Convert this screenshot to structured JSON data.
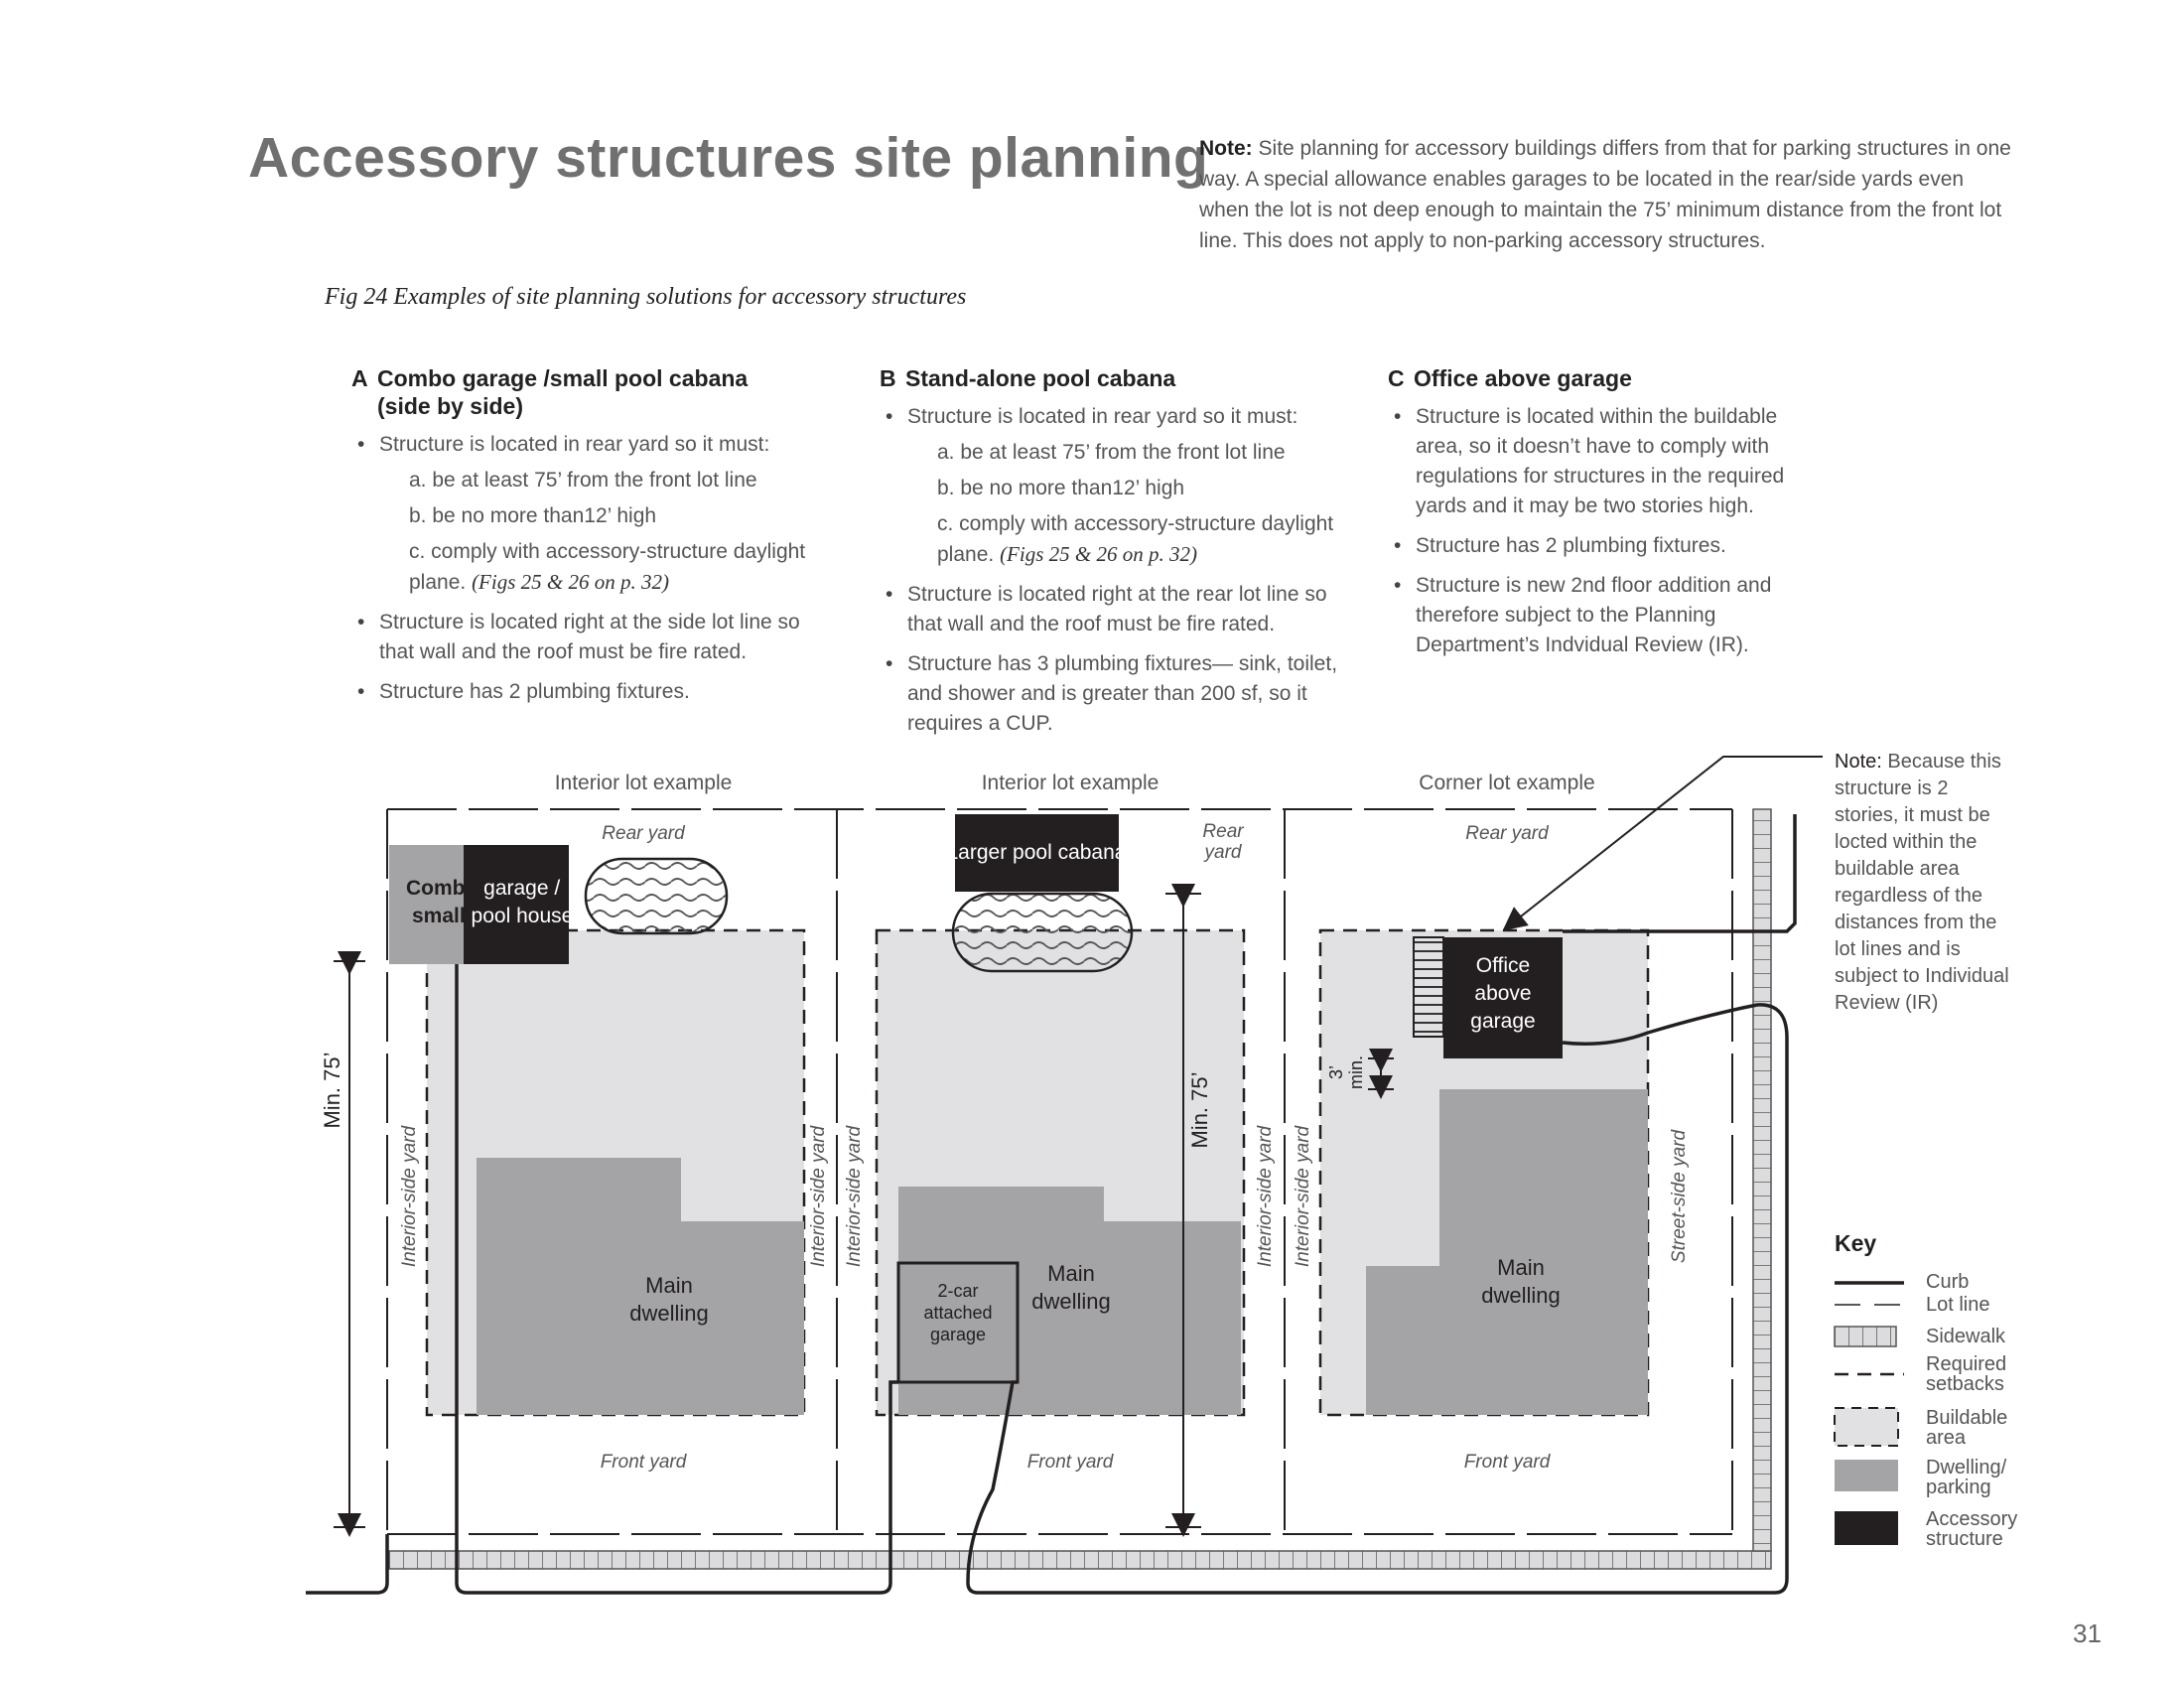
{
  "title": "Accessory structures site planning",
  "note": {
    "label": "Note:",
    "text": "Site planning for accessory buildings differs from that for parking structures in one way. A special allowance enables garages to be located in the rear/side yards even when the lot is not deep enough to maintain the 75’ minimum distance from the front lot line. This does not apply to non-parking accessory structures."
  },
  "figure_caption": "Fig 24  Examples of site planning solutions for accessory structures",
  "columns": {
    "a": {
      "letter": "A",
      "heading": "Combo garage /small pool cabana (side by side)",
      "bullet1": "Structure is located in rear yard so it must:",
      "sub_a": "a. be at least 75’ from the front lot line",
      "sub_b": "b. be no more than12’ high",
      "sub_c": "c. comply with accessory-structure daylight plane.",
      "sub_c_ref": "(Figs 25 & 26 on p. 32)",
      "bullet2": "Structure is located right at the side lot line so that wall and the roof must be fire rated.",
      "bullet3": "Structure has 2 plumbing fixtures."
    },
    "b": {
      "letter": "B",
      "heading": "Stand-alone pool cabana",
      "bullet1": "Structure is located in rear yard so it must:",
      "sub_a": "a. be at least 75’ from the front lot line",
      "sub_b": "b. be no more than12’ high",
      "sub_c": "c. comply with accessory-structure daylight plane.",
      "sub_c_ref": "(Figs 25 & 26 on p. 32)",
      "bullet2": "Structure is located right at the rear lot line so that wall and the roof must be fire rated.",
      "bullet3": "Structure has 3 plumbing fixtures— sink, toilet, and shower and is greater than 200 sf, so it requires a CUP."
    },
    "c": {
      "letter": "C",
      "heading": "Office above garage",
      "bullet1": "Structure is located within the buildable area, so it doesn’t have to comply with regulations for structures in the required yards and it may be two stories high.",
      "bullet2": "Structure has 2 plumbing fixtures.",
      "bullet3": "Structure is new 2nd floor addition and therefore subject to the Planning Department’s Indvidual Review (IR)."
    }
  },
  "diagram": {
    "lot_a_title": "Interior lot example",
    "lot_b_title": "Interior lot example",
    "lot_c_title": "Corner lot example",
    "rear_yard": "Rear yard",
    "rear": "Rear",
    "yard": "yard",
    "front_yard": "Front yard",
    "interior_side_yard": "Interior-side yard",
    "street_side_yard": "Street-side yard",
    "min_75": "Min. 75’",
    "min_3_a": "3’",
    "min_3_b": "min.",
    "main": "Main",
    "dwelling": "dwelling",
    "combo_1a": "Combo ",
    "combo_1b": "garage /",
    "combo_2a": "small ",
    "combo_2b": "pool house",
    "larger_pool_cabana": "Larger pool cabana",
    "office": "Office",
    "above": "above",
    "garage": "garage",
    "two_car": "2-car",
    "attached": "attached",
    "garage_small": "garage"
  },
  "side_note": {
    "label": "Note:",
    "lines": [
      "Because this",
      "structure is 2",
      "stories, it must be",
      "locted within the",
      "buildable area",
      "regardless of the",
      "distances from the",
      "lot lines and is",
      "subject to Individual",
      "Review (IR)"
    ]
  },
  "key": {
    "title": "Key",
    "curb": "Curb",
    "lot_line": "Lot line",
    "sidewalk": "Sidewalk",
    "required_1": "Required",
    "required_2": "setbacks",
    "buildable_1": "Buildable",
    "buildable_2": "area",
    "dwelling_1": "Dwelling/",
    "dwelling_2": "parking",
    "accessory_1": "Accessory",
    "accessory_2": "structure"
  },
  "colors": {
    "buildable": "#e1e1e3",
    "dwelling": "#a4a4a6",
    "accessory": "#231f20",
    "line": "#231f20"
  },
  "page_number": "31"
}
